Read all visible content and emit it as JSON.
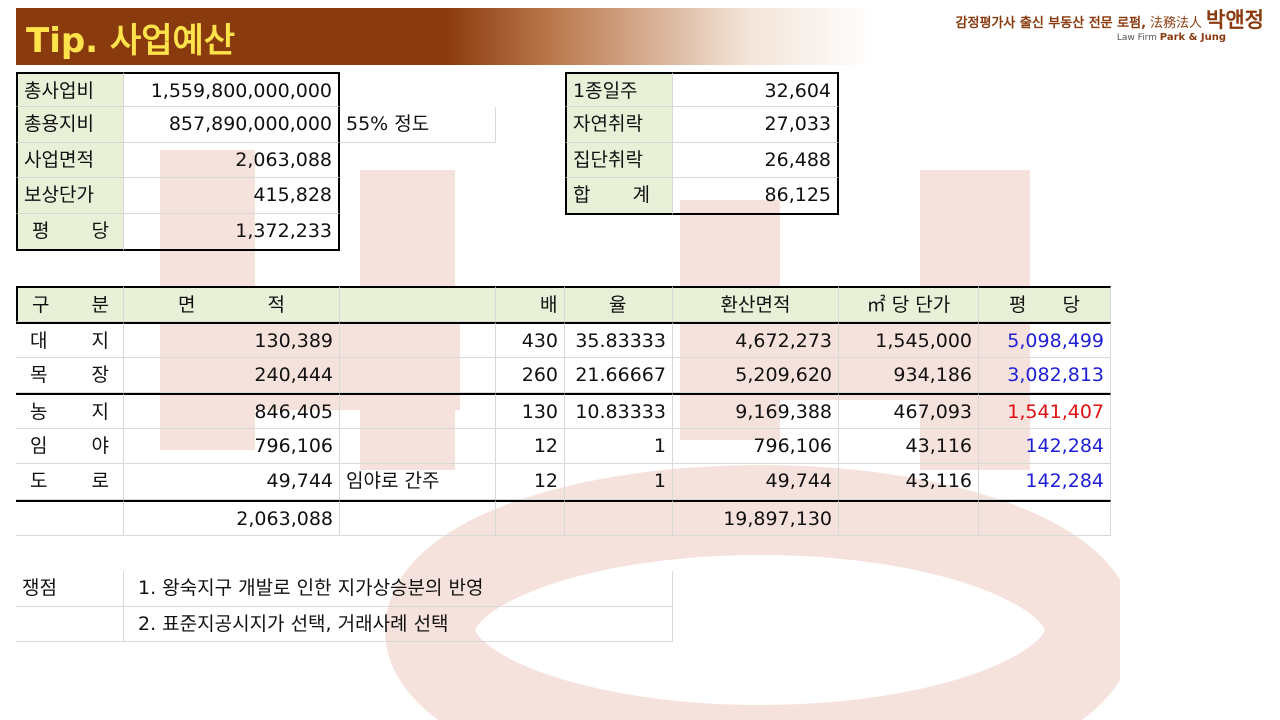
{
  "header": {
    "title": "Tip. 사업예산",
    "brand_slogan": "감정평가사 출신 부동산 전문 로펌,",
    "brand_hanja": "法務法人",
    "brand_name": "박앤정",
    "brand_sub_prefix": "Law Firm",
    "brand_sub_name": "Park & Jung"
  },
  "summary": {
    "total_cost_label": "총사업비",
    "total_cost": "1,559,800,000,000",
    "land_cost_label": "총용지비",
    "land_cost": "857,890,000,000",
    "land_cost_note": "55% 정도",
    "area_label": "사업면적",
    "area": "2,063,088",
    "unit_price_label": "보상단가",
    "unit_price": "415,828",
    "per_pyeong_label_1": "평",
    "per_pyeong_label_2": "당",
    "per_pyeong": "1,372,233"
  },
  "zones": {
    "rows": [
      {
        "label": "1종일주",
        "value": "32,604"
      },
      {
        "label": "자연취락",
        "value": "27,033"
      },
      {
        "label": "집단취락",
        "value": "26,488"
      }
    ],
    "total_label_1": "합",
    "total_label_2": "계",
    "total_value": "86,125"
  },
  "main_table": {
    "headers": {
      "gubun_1": "구",
      "gubun_2": "분",
      "area_1": "면",
      "area_2": "적",
      "ratio_1": "배",
      "ratio_2": "율",
      "converted": "환산면적",
      "sqm_price": "㎡ 당 단가",
      "pyeong_1": "평",
      "pyeong_2": "당"
    },
    "rows": [
      {
        "c1": "대",
        "c2": "지",
        "area": "130,389",
        "note": "",
        "ratio": "430",
        "factor": "35.83333",
        "converted": "4,672,273",
        "sqm_price": "1,545,000",
        "pyeong": "5,098,499",
        "color": "blue"
      },
      {
        "c1": "목",
        "c2": "장",
        "area": "240,444",
        "note": "",
        "ratio": "260",
        "factor": "21.66667",
        "converted": "5,209,620",
        "sqm_price": "934,186",
        "pyeong": "3,082,813",
        "color": "blue"
      },
      {
        "c1": "농",
        "c2": "지",
        "area": "846,405",
        "note": "",
        "ratio": "130",
        "factor": "10.83333",
        "converted": "9,169,388",
        "sqm_price": "467,093",
        "pyeong": "1,541,407",
        "color": "red"
      },
      {
        "c1": "임",
        "c2": "야",
        "area": "796,106",
        "note": "",
        "ratio": "12",
        "factor": "1",
        "converted": "796,106",
        "sqm_price": "43,116",
        "pyeong": "142,284",
        "color": "blue"
      },
      {
        "c1": "도",
        "c2": "로",
        "area": "49,744",
        "note": "임야로 간주",
        "ratio": "12",
        "factor": "1",
        "converted": "49,744",
        "sqm_price": "43,116",
        "pyeong": "142,284",
        "color": "blue"
      }
    ],
    "total_area": "2,063,088",
    "total_converted": "19,897,130"
  },
  "issues": {
    "label": "쟁점",
    "item1": "1. 왕숙지구 개발로 인한 지가상승분의 반영",
    "item2": "2. 표준지공시지가 선택, 거래사례 선택"
  },
  "colors": {
    "banner": "#8a3b0e",
    "title": "#ffe34a",
    "header_fill": "#e9f0d8",
    "blue": "#1f1fd6",
    "red": "#e01010"
  }
}
